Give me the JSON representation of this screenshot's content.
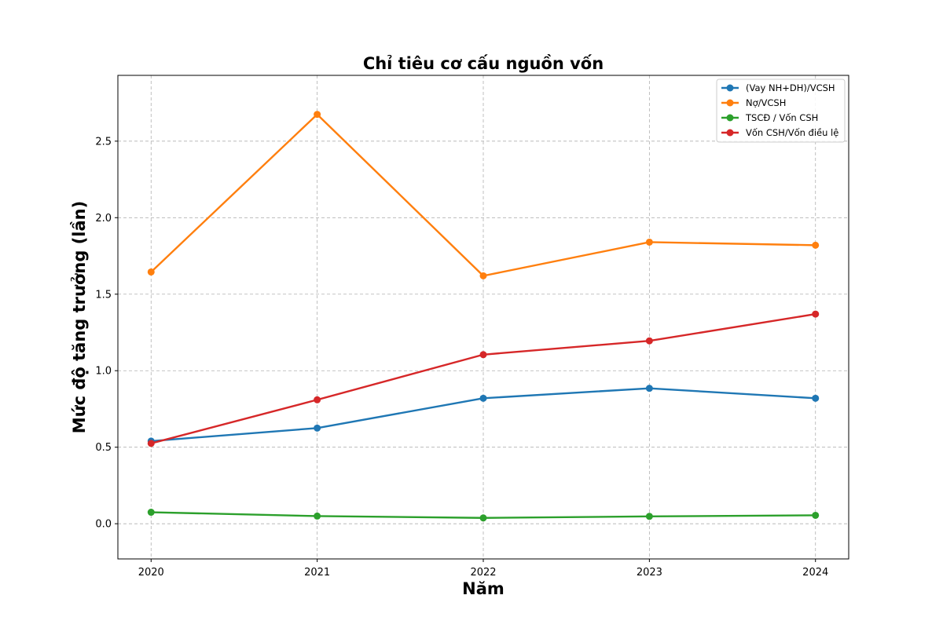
{
  "chart_data": {
    "type": "line",
    "title": "Chỉ tiêu cơ cấu nguồn vốn",
    "xlabel": "Năm",
    "ylabel": "Mức độ tăng trưởng (lần)",
    "x": [
      2020,
      2021,
      2022,
      2023,
      2024
    ],
    "x_tick_labels": [
      "2020",
      "2021",
      "2022",
      "2023",
      "2024"
    ],
    "y_ticks": [
      0.0,
      0.5,
      1.0,
      1.5,
      2.0,
      2.5
    ],
    "y_tick_labels": [
      "0.0",
      "0.5",
      "1.0",
      "1.5",
      "2.0",
      "2.5"
    ],
    "ylim": [
      -0.23,
      2.93
    ],
    "xlim": [
      2019.8,
      2024.2
    ],
    "grid": true,
    "legend_position": "top-right",
    "series": [
      {
        "name": "(Vay NH+DH)/VCSH",
        "color": "#1f77b4",
        "values": [
          0.54,
          0.625,
          0.82,
          0.885,
          0.82
        ]
      },
      {
        "name": "Nợ/VCSH",
        "color": "#ff7f0e",
        "values": [
          1.645,
          2.675,
          1.62,
          1.84,
          1.82
        ]
      },
      {
        "name": "TSCĐ / Vốn CSH",
        "color": "#2ca02c",
        "values": [
          0.075,
          0.05,
          0.038,
          0.048,
          0.055
        ]
      },
      {
        "name": "Vốn CSH/Vốn điều lệ",
        "color": "#d62728",
        "values": [
          0.525,
          0.81,
          1.105,
          1.195,
          1.37
        ]
      }
    ]
  }
}
